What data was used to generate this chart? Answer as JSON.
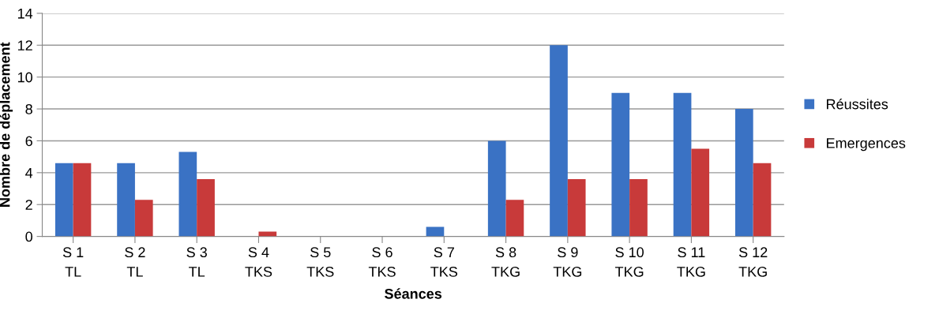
{
  "chart_data": {
    "type": "bar",
    "xlabel": "Séances",
    "ylabel": "Nombre de déplacement",
    "categories": [
      "S 1\nTL",
      "S 2\nTL",
      "S 3\nTL",
      "S 4\nTKS",
      "S 5\nTKS",
      "S 6\nTKS",
      "S 7\nTKS",
      "S 8\nTKG",
      "S 9\nTKG",
      "S 10\nTKG",
      "S 11\nTKG",
      "S 12\nTKG"
    ],
    "series": [
      {
        "name": "Réussites",
        "color": "#3a72c4",
        "values": [
          4.6,
          4.6,
          5.3,
          0,
          0,
          0,
          0.6,
          6,
          12,
          9,
          9,
          8
        ]
      },
      {
        "name": "Emergences",
        "color": "#c83a3a",
        "values": [
          4.6,
          2.3,
          3.6,
          0.3,
          0,
          0,
          0,
          2.3,
          3.6,
          3.6,
          5.5,
          4.6
        ]
      }
    ],
    "ylim": [
      0,
      14
    ],
    "yticks": [
      0,
      2,
      4,
      6,
      8,
      10,
      12,
      14
    ],
    "grid": "y",
    "legend": "right"
  }
}
